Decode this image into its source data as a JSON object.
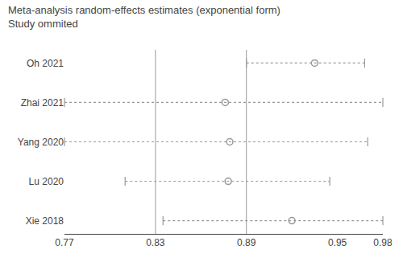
{
  "chart_data": {
    "type": "forest",
    "title": "Meta-analysis random-effects estimates (exponential form)",
    "subtitle": "Study ommited",
    "categories": [
      "Oh 2021",
      "Zhai 2021",
      "Yang 2020",
      "Lu 2020",
      "Xie 2018"
    ],
    "values": [
      0.935,
      0.876,
      0.879,
      0.878,
      0.92
    ],
    "ci_low": [
      0.89,
      0.77,
      0.77,
      0.81,
      0.835
    ],
    "ci_high": [
      0.968,
      0.98,
      0.97,
      0.945,
      0.98
    ],
    "reference_lines": [
      0.83,
      0.89
    ],
    "xlim": [
      0.77,
      0.98
    ],
    "xticks": [
      0.77,
      0.83,
      0.89,
      0.95,
      0.98
    ],
    "grid": false,
    "color": "#999999",
    "marker": "circle-open",
    "line_style": "dot"
  }
}
